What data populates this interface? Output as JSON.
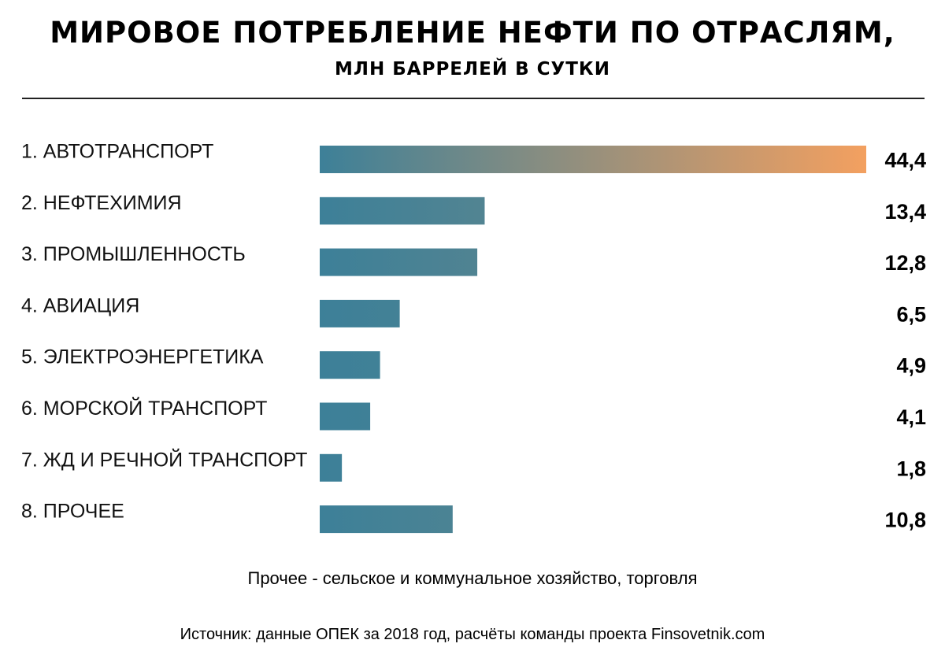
{
  "header": {
    "title": "МИРОВОЕ ПОТРЕБЛЕНИЕ НЕФТИ ПО ОТРАСЛЯМ,",
    "subtitle": "МЛН БАРРЕЛЕЙ В СУТКИ"
  },
  "chart_data": {
    "type": "bar",
    "orientation": "horizontal",
    "categories": [
      "1. АВТОТРАНСПОРТ",
      "2. НЕФТЕХИМИЯ",
      "3. ПРОМЫШЛЕННОСТЬ",
      "4. АВИАЦИЯ",
      "5. ЭЛЕКТРОЭНЕРГЕТИКА",
      "6. МОРСКОЙ ТРАНСПОРТ",
      "7. ЖД И РЕЧНОЙ ТРАНСПОРТ",
      "8. ПРОЧЕЕ"
    ],
    "values": [
      44.4,
      13.4,
      12.8,
      6.5,
      4.9,
      4.1,
      1.8,
      10.8
    ],
    "value_labels": [
      "44,4",
      "13,4",
      "12,8",
      "6,5",
      "4,9",
      "4,1",
      "1,8",
      "10,8"
    ],
    "xlim": [
      0,
      44.4
    ],
    "grid": false,
    "colors": {
      "gradient_start": "#3d8098",
      "gradient_end": "#f3a060"
    }
  },
  "footer": {
    "note": "Прочее - сельское и коммунальное хозяйство, торговля",
    "source": "Источник: данные ОПЕК за 2018 год, расчёты команды проекта Finsovetnik.com"
  }
}
